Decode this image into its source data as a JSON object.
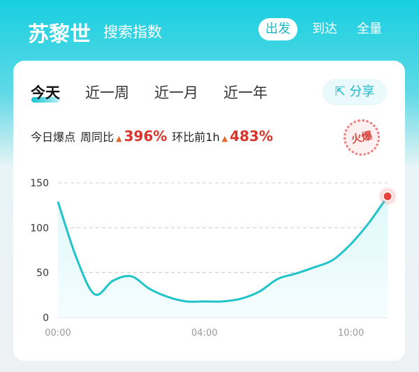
{
  "header": {
    "title": "苏黎世",
    "subtitle": "搜索指数",
    "directions": [
      {
        "label": "出发",
        "active": true
      },
      {
        "label": "到达",
        "active": false
      },
      {
        "label": "全量",
        "active": false
      }
    ]
  },
  "tabs": [
    {
      "label": "今天",
      "active": true
    },
    {
      "label": "近一周"
    },
    {
      "label": "近一月"
    },
    {
      "label": "近一年"
    }
  ],
  "share_label": "分享",
  "stats": {
    "label": "今日爆点",
    "wow_label": "周同比",
    "wow_value": "396%",
    "hoh_label": "环比前1h",
    "hoh_value": "483%"
  },
  "stamp_text": "火爆",
  "colors": {
    "accent": "#1cb8c9",
    "line": "#1fc4c9",
    "highlight": "#e8403a",
    "up": "#d8342a"
  },
  "chart_data": {
    "type": "area",
    "x_tick_labels": [
      {
        "index": 0,
        "label": "00:00"
      },
      {
        "index": 8,
        "label": "04:00"
      },
      {
        "index": 16,
        "label": "10:00"
      }
    ],
    "values": [
      129,
      67,
      26,
      41,
      46,
      32,
      23,
      18,
      18,
      18,
      21,
      29,
      43,
      49,
      56,
      64,
      82,
      106,
      135
    ],
    "ylim": [
      0,
      150
    ],
    "y_ticks": [
      "0",
      "50",
      "100",
      "150"
    ],
    "grid": true,
    "highlight_last_point": true
  }
}
